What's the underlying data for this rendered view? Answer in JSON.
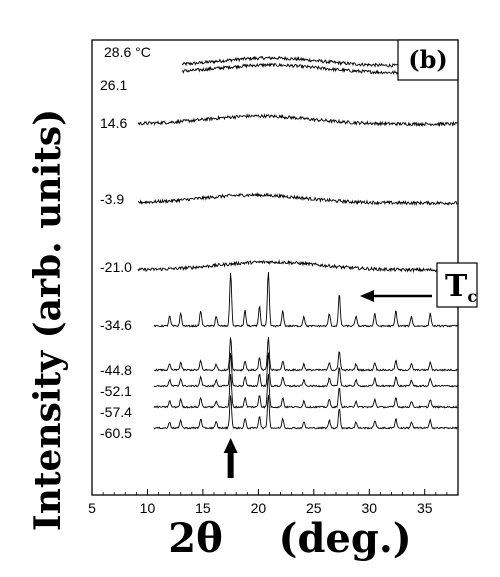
{
  "chart_data": {
    "type": "line",
    "panel_label": "(b)",
    "xlabel": "2θ    (deg.)",
    "ylabel": "Intensity (arb. units)",
    "xlim": [
      5,
      38
    ],
    "x_ticks": [
      "5",
      "10",
      "15",
      "20",
      "25",
      "30",
      "35"
    ],
    "y_ticks_shown": false,
    "grid": false,
    "annotation_tc": {
      "main": "T",
      "sub": "c"
    },
    "annotation_arrow_up_x": 17.5,
    "series": [
      {
        "name": "28.6 °C",
        "state": "amorphous",
        "hump_center": 21,
        "peaks": []
      },
      {
        "name": "26.1",
        "state": "amorphous",
        "hump_center": 21,
        "peaks": []
      },
      {
        "name": "14.6",
        "state": "amorphous",
        "hump_center": 20,
        "peaks": []
      },
      {
        "name": "-3.9",
        "state": "amorphous",
        "hump_center": 19.5,
        "peaks": []
      },
      {
        "name": "-21.0",
        "state": "amorphous",
        "hump_center": 21,
        "peaks": []
      },
      {
        "name": "-34.6",
        "state": "crystalline",
        "peaks": [
          12,
          13,
          14.8,
          16.2,
          17.5,
          18.8,
          20.1,
          20.9,
          22.2,
          24.1,
          26.4,
          27.3,
          28.8,
          30.5,
          32.4,
          33.8,
          35.5
        ]
      },
      {
        "name": "-44.8",
        "state": "crystalline",
        "peaks": [
          12,
          13,
          14.8,
          16.2,
          17.5,
          18.8,
          20.1,
          20.9,
          22.2,
          24.1,
          26.4,
          27.3,
          28.8,
          30.5,
          32.4,
          33.8,
          35.5
        ]
      },
      {
        "name": "-52.1",
        "state": "crystalline",
        "peaks": [
          12,
          13,
          14.8,
          16.2,
          17.5,
          18.8,
          20.1,
          20.9,
          22.2,
          24.1,
          26.4,
          27.3,
          28.8,
          30.5,
          32.4,
          33.8,
          35.5
        ]
      },
      {
        "name": "-57.4",
        "state": "crystalline",
        "peaks": [
          12,
          13,
          14.8,
          16.2,
          17.5,
          18.8,
          20.1,
          20.9,
          22.2,
          24.1,
          26.4,
          27.3,
          28.8,
          30.5,
          32.4,
          33.8,
          35.5
        ]
      },
      {
        "name": "-60.5",
        "state": "crystalline",
        "peaks": [
          12,
          13,
          14.8,
          16.2,
          17.5,
          18.8,
          20.1,
          20.9,
          22.2,
          24.1,
          26.4,
          27.3,
          28.8,
          30.5,
          32.4,
          33.8,
          35.5
        ]
      }
    ]
  }
}
